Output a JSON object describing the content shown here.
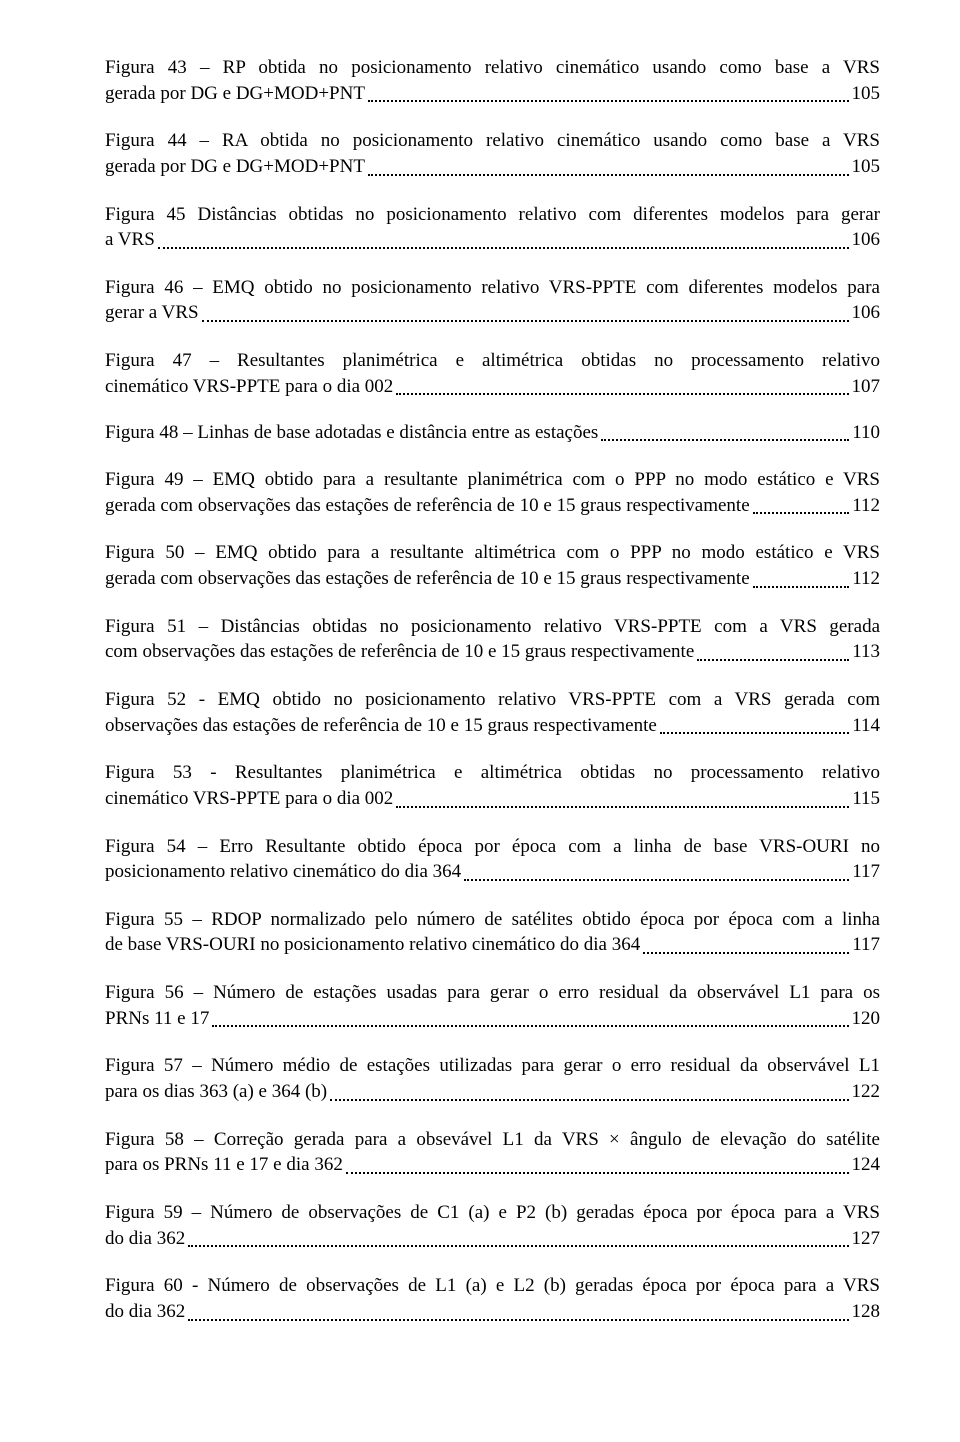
{
  "entries": [
    {
      "head": "Figura 43 – RP obtida no posicionamento relativo cinemático usando como base a VRS",
      "tail": "gerada por DG e DG+MOD+PNT",
      "page": "105"
    },
    {
      "head": "Figura 44 – RA obtida no posicionamento relativo cinemático usando como base a VRS",
      "tail": "gerada por DG e DG+MOD+PNT",
      "page": "105"
    },
    {
      "head": "Figura 45 Distâncias obtidas no posicionamento relativo com diferentes modelos para gerar",
      "tail": "a VRS",
      "page": "106"
    },
    {
      "head": "Figura 46 – EMQ obtido no posicionamento relativo VRS-PPTE com diferentes modelos para",
      "tail": "gerar a VRS",
      "page": "106"
    },
    {
      "head": "Figura 47 – Resultantes planimétrica e altimétrica obtidas no processamento relativo",
      "tail": "cinemático VRS-PPTE para o dia 002",
      "page": "107"
    },
    {
      "head": "",
      "tail": "Figura 48 – Linhas de base adotadas e distância entre as estações",
      "page": "110"
    },
    {
      "head": "Figura 49 – EMQ obtido para a resultante planimétrica com o PPP no modo estático e VRS",
      "tail": "gerada com observações das estações de referência de 10 e 15 graus respectivamente",
      "page": "112"
    },
    {
      "head": "Figura 50 – EMQ obtido para a resultante altimétrica com o PPP no modo estático e VRS",
      "tail": "gerada com observações das estações de referência de 10 e 15 graus respectivamente",
      "page": "112"
    },
    {
      "head": "Figura 51 – Distâncias obtidas no posicionamento relativo VRS-PPTE com a VRS gerada",
      "tail": "com observações das estações de referência de 10 e 15 graus respectivamente",
      "page": "113"
    },
    {
      "head": "Figura 52 - EMQ obtido no posicionamento relativo VRS-PPTE com a VRS gerada com",
      "tail": "observações das estações de referência de 10 e 15 graus respectivamente",
      "page": "114"
    },
    {
      "head": "Figura 53 - Resultantes planimétrica e altimétrica obtidas no processamento relativo",
      "tail": "cinemático VRS-PPTE para o dia 002",
      "page": "115"
    },
    {
      "head": "Figura 54 – Erro Resultante obtido época por época com a linha de base VRS-OURI no",
      "tail": "posicionamento relativo cinemático do dia 364",
      "page": "117"
    },
    {
      "head": "Figura 55 – RDOP normalizado pelo número de satélites obtido época por época com a linha",
      "tail": "de base VRS-OURI no posicionamento relativo cinemático do dia 364",
      "page": "117"
    },
    {
      "head": "Figura 56 – Número de estações usadas para gerar o erro residual da observável L1 para os",
      "tail": "PRNs 11 e 17",
      "page": "120"
    },
    {
      "head": "Figura 57 – Número médio de estações utilizadas para gerar o erro residual da observável L1",
      "tail": "para os dias 363 (a) e 364 (b)",
      "page": "122"
    },
    {
      "head": "Figura 58 – Correção gerada para a obsevável L1 da VRS × ângulo de elevação do satélite",
      "tail": "para os PRNs 11 e 17 e dia 362",
      "page": "124"
    },
    {
      "head": "Figura 59 – Número de observações de C1 (a) e P2 (b) geradas época por época para a VRS",
      "tail": "do dia 362",
      "page": "127"
    },
    {
      "head": "Figura 60 - Número de observações de L1 (a) e L2 (b) geradas época por época para a VRS",
      "tail": "do dia 362",
      "page": "128"
    }
  ]
}
